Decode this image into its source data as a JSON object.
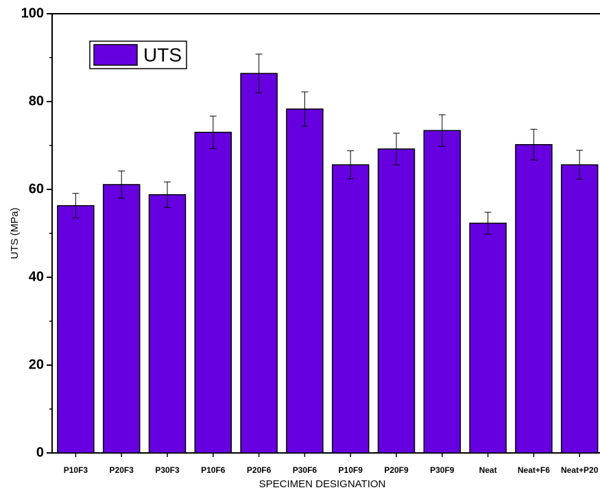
{
  "chart_data": {
    "type": "bar",
    "x_label": "SPECIMEN DESIGNATION",
    "y_label": "UTS (MPa)",
    "categories": [
      "P10F3",
      "P20F3",
      "P30F3",
      "P10F6",
      "P20F6",
      "P30F6",
      "P10F9",
      "P20F9",
      "P30F9",
      "Neat",
      "Neat+F6",
      "Neat+P20"
    ],
    "series": [
      {
        "name": "UTS",
        "color": "#6600e0",
        "values": [
          56.3,
          61.1,
          58.8,
          73.0,
          86.4,
          78.3,
          65.6,
          69.2,
          73.4,
          52.3,
          70.2,
          65.6
        ],
        "errors": [
          2.8,
          3.1,
          2.9,
          3.7,
          4.4,
          3.9,
          3.2,
          3.6,
          3.6,
          2.5,
          3.5,
          3.3
        ]
      }
    ],
    "ylim": [
      0,
      100
    ],
    "yticks": [
      0,
      20,
      40,
      60,
      80,
      100
    ],
    "legend": "upper-left"
  }
}
